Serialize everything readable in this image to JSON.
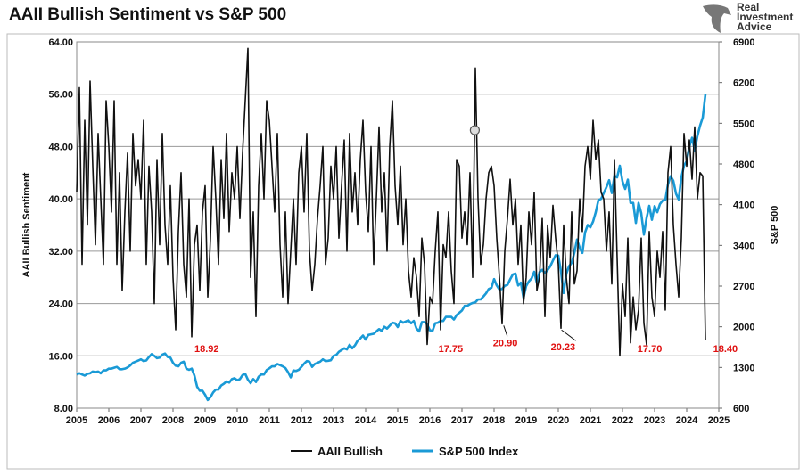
{
  "chart_data": {
    "type": "line",
    "title": "AAII Bullish Sentiment vs S&P 500",
    "ylabel": "AAII Bullish Sentiment",
    "y2label": "S&P 500",
    "ylim": [
      8,
      64
    ],
    "y2lim": [
      600,
      6900
    ],
    "xlim": [
      2005,
      2025
    ],
    "yticks": [
      "8.00",
      "16.00",
      "24.00",
      "32.00",
      "40.00",
      "48.00",
      "56.00",
      "64.00"
    ],
    "y2ticks": [
      "600",
      "1300",
      "2000",
      "2700",
      "3400",
      "4100",
      "4800",
      "5500",
      "6200",
      "6900"
    ],
    "xticks": [
      "2005",
      "2006",
      "2007",
      "2008",
      "2009",
      "2010",
      "2011",
      "2012",
      "2013",
      "2014",
      "2015",
      "2016",
      "2017",
      "2018",
      "2019",
      "2020",
      "2021",
      "2022",
      "2023",
      "2024",
      "2025"
    ],
    "grid": true,
    "legend": "bottom",
    "series": [
      {
        "name": "AAII Bullish",
        "color": "#111111",
        "axis": "left",
        "start": 2005.0,
        "step": "monthly",
        "values": [
          41,
          57,
          30,
          52,
          36,
          58,
          45,
          33,
          50,
          40,
          30,
          55,
          48,
          38,
          55,
          30,
          44,
          26,
          38,
          47,
          32,
          50,
          42,
          46,
          40,
          52,
          30,
          45,
          38,
          24,
          46,
          33,
          50,
          36,
          30,
          42,
          28,
          20,
          35,
          44,
          30,
          25,
          40,
          18.92,
          33,
          36,
          26,
          38,
          42,
          25,
          34,
          48,
          40,
          30,
          46,
          37,
          50,
          35,
          44,
          40,
          48,
          37,
          47,
          55,
          63,
          28,
          38,
          22,
          42,
          50,
          40,
          55,
          52,
          45,
          38,
          50,
          33,
          25,
          38,
          24,
          32,
          40,
          30,
          44,
          48,
          38,
          50,
          32,
          26,
          30,
          37,
          42,
          48,
          30,
          34,
          45,
          40,
          48,
          34,
          42,
          49,
          32,
          50,
          38,
          44,
          36,
          46,
          52,
          41,
          35,
          48,
          30,
          40,
          51,
          38,
          44,
          32,
          48,
          55,
          42,
          36,
          45,
          33,
          40,
          29,
          25,
          31,
          28,
          22,
          34,
          30,
          17.75,
          25,
          24,
          32,
          38,
          20,
          33,
          31,
          38,
          29,
          24,
          46,
          45,
          34,
          38,
          33,
          44,
          28,
          60,
          40,
          30,
          33,
          40,
          44,
          45,
          42,
          34,
          28,
          20.9,
          32,
          37,
          43,
          36,
          40,
          30,
          36,
          24,
          28,
          38,
          33,
          41,
          26,
          28,
          37,
          22,
          36,
          31,
          39,
          34,
          30,
          20.23,
          36,
          28,
          24,
          38,
          27,
          29,
          40,
          35,
          45,
          48,
          43,
          52,
          46,
          49,
          41,
          40,
          32,
          38,
          27,
          46,
          31,
          16,
          27,
          22,
          34,
          18,
          25,
          20,
          23,
          34,
          21,
          17.7,
          35,
          25,
          22,
          32,
          28,
          35,
          23,
          44,
          48,
          36,
          30,
          25,
          34,
          50,
          45,
          49,
          43,
          51,
          40,
          44,
          43.5,
          18.4
        ]
      },
      {
        "name": "S&P 500 Index",
        "color": "#1a9ad6",
        "axis": "right",
        "start": 2005.0,
        "step": "monthly",
        "values": [
          1180,
          1200,
          1180,
          1160,
          1190,
          1200,
          1230,
          1220,
          1230,
          1200,
          1250,
          1250,
          1280,
          1280,
          1295,
          1310,
          1270,
          1270,
          1280,
          1300,
          1335,
          1380,
          1400,
          1420,
          1440,
          1410,
          1420,
          1480,
          1530,
          1500,
          1460,
          1470,
          1520,
          1540,
          1480,
          1470,
          1380,
          1330,
          1320,
          1380,
          1400,
          1280,
          1260,
          1280,
          1160,
          970,
          900,
          900,
          830,
          740,
          790,
          870,
          920,
          920,
          990,
          1020,
          1060,
          1040,
          1100,
          1115,
          1080,
          1100,
          1170,
          1190,
          1090,
          1030,
          1100,
          1050,
          1140,
          1180,
          1180,
          1255,
          1285,
          1320,
          1320,
          1360,
          1340,
          1320,
          1290,
          1220,
          1130,
          1250,
          1240,
          1260,
          1310,
          1365,
          1410,
          1400,
          1310,
          1360,
          1380,
          1400,
          1440,
          1410,
          1415,
          1425,
          1500,
          1515,
          1570,
          1600,
          1630,
          1610,
          1690,
          1630,
          1680,
          1760,
          1800,
          1850,
          1780,
          1860,
          1870,
          1880,
          1920,
          1960,
          1930,
          2000,
          1970,
          2020,
          2070,
          2060,
          1995,
          2100,
          2070,
          2090,
          2110,
          2060,
          2100,
          1970,
          1920,
          2080,
          2080,
          2040,
          1940,
          1930,
          2060,
          2070,
          2100,
          2100,
          2170,
          2170,
          2170,
          2125,
          2200,
          2240,
          2280,
          2360,
          2360,
          2390,
          2410,
          2420,
          2470,
          2470,
          2520,
          2575,
          2650,
          2670,
          2820,
          2710,
          2640,
          2650,
          2705,
          2720,
          2815,
          2900,
          2915,
          2710,
          2760,
          2500,
          2700,
          2780,
          2830,
          2945,
          2750,
          2940,
          2980,
          2925,
          2975,
          3040,
          3140,
          3230,
          3225,
          2950,
          2580,
          2910,
          3040,
          3100,
          3270,
          3500,
          3360,
          3270,
          3620,
          3750,
          3710,
          3810,
          3970,
          4180,
          4200,
          4300,
          4400,
          4520,
          4300,
          4600,
          4570,
          4770,
          4500,
          4370,
          4530,
          4130,
          4130,
          3785,
          4130,
          3955,
          3585,
          3870,
          4080,
          3840,
          4075,
          3970,
          4110,
          4170,
          4180,
          4450,
          4590,
          4510,
          4290,
          4190,
          4570,
          4770,
          4850,
          5100,
          5250,
          5035,
          5280,
          5460,
          5600,
          6000
        ]
      }
    ],
    "annotations": [
      {
        "text": "18.92",
        "x": 2009.0,
        "y": 18.92
      },
      {
        "text": "17.75",
        "x": 2016.6,
        "y": 17.75
      },
      {
        "text": "20.90",
        "x": 2018.3,
        "y": 20.9,
        "leader": true
      },
      {
        "text": "20.23",
        "x": 2020.1,
        "y": 20.23,
        "leader": true
      },
      {
        "text": "17.70",
        "x": 2022.8,
        "y": 17.7
      },
      {
        "text": "18.40",
        "x": 2024.6,
        "y": 18.4
      }
    ],
    "marker": {
      "x": 2017.4,
      "y": 50.5
    }
  },
  "logo": {
    "text": "Real Investment Advice"
  }
}
